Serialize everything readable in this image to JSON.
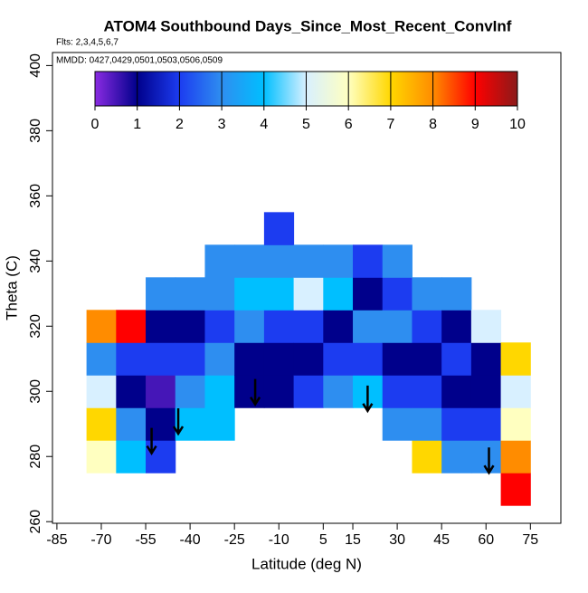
{
  "chart_data": {
    "type": "heatmap",
    "title": "ATOM4 Southbound Days_Since_Most_Recent_ConvInf",
    "subtitle": "Flts: 2,3,4,5,6,7",
    "annotation": "MMDD: 0427,0429,0501,0503,0506,0509",
    "x_label": "Latitude (deg N)",
    "y_label": "Theta (C)",
    "xlim": [
      -86.5,
      85.3
    ],
    "ylim": [
      259.5,
      404
    ],
    "xticks": [
      -85,
      -70,
      -55,
      -40,
      -25,
      -10,
      5,
      15,
      30,
      45,
      60,
      75
    ],
    "yticks": [
      260,
      280,
      300,
      320,
      340,
      360,
      380,
      400
    ],
    "x_edges": [
      -75,
      -65,
      -55,
      -45,
      -35,
      -25,
      -15,
      -5,
      5,
      15,
      25,
      35,
      45,
      55,
      65,
      75
    ],
    "y_edges": [
      265,
      275,
      285,
      295,
      305,
      315,
      325,
      335,
      345,
      355
    ],
    "z": [
      [
        null,
        6,
        7,
        5,
        3,
        8,
        null,
        null,
        null
      ],
      [
        null,
        4,
        3,
        1,
        2,
        9,
        null,
        null,
        null
      ],
      [
        null,
        2,
        1,
        0.5,
        2,
        1,
        3,
        null,
        null
      ],
      [
        null,
        null,
        4,
        3,
        2,
        1,
        3,
        null,
        null
      ],
      [
        null,
        null,
        4,
        4,
        3,
        2,
        3,
        3,
        null
      ],
      [
        null,
        null,
        null,
        1,
        1,
        3,
        4,
        3,
        null
      ],
      [
        null,
        null,
        null,
        1,
        1,
        2,
        4,
        3,
        2
      ],
      [
        null,
        null,
        null,
        2,
        1,
        2,
        5,
        3,
        null
      ],
      [
        null,
        null,
        null,
        3,
        2,
        1,
        4,
        3,
        null
      ],
      [
        null,
        null,
        null,
        4,
        2,
        3,
        1,
        2,
        null
      ],
      [
        null,
        null,
        3,
        2,
        1,
        3,
        2,
        3,
        null
      ],
      [
        null,
        7,
        3,
        2,
        1,
        2,
        3,
        null,
        null
      ],
      [
        null,
        3,
        2,
        1,
        2,
        1,
        3,
        null,
        null
      ],
      [
        null,
        3,
        2,
        1,
        1,
        5,
        null,
        null,
        null
      ],
      [
        9,
        8,
        6,
        5,
        7,
        null,
        null,
        null,
        null
      ]
    ],
    "zlim": [
      0,
      10
    ],
    "zticks": [
      0,
      1,
      2,
      3,
      4,
      5,
      6,
      7,
      8,
      9,
      10
    ],
    "colorscale": [
      "#8a2be2",
      "#00008b",
      "#1c3cf0",
      "#2e8ef0",
      "#00bfff",
      "#d8f0ff",
      "#ffffc0",
      "#ffd700",
      "#ff8c00",
      "#ff0000",
      "#8b1a1a"
    ],
    "arrows": {
      "x": [
        -53,
        -44,
        -18,
        20,
        61
      ],
      "y": [
        281,
        287,
        296,
        294,
        275
      ],
      "color": "#000000"
    }
  }
}
